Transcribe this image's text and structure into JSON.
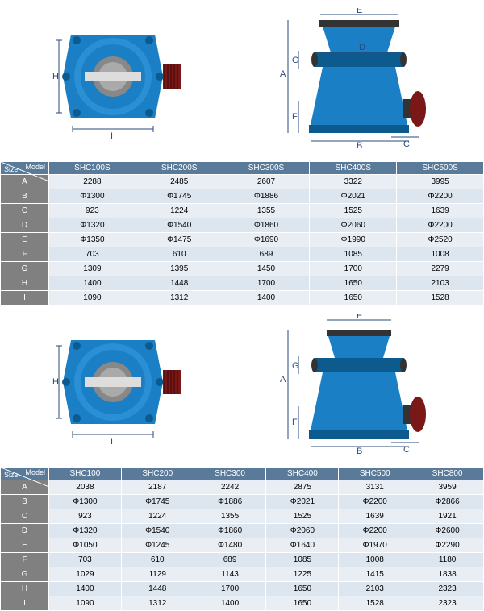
{
  "colors": {
    "crusher_blue": "#1a7fc4",
    "crusher_dark": "#0d5a8f",
    "pulley": "#7a1818",
    "dim_line": "#2a4a7a",
    "header_bg": "#5a7a9a",
    "label_bg": "#808080",
    "data_bg": "#e8eef4",
    "data_alt": "#dde6ef"
  },
  "table1": {
    "corner": {
      "model": "Model",
      "size": "Size"
    },
    "models": [
      "SHC100S",
      "SHC200S",
      "SHC300S",
      "SHC400S",
      "SHC500S"
    ],
    "rows": [
      {
        "label": "A",
        "vals": [
          "2288",
          "2485",
          "2607",
          "3322",
          "3995"
        ]
      },
      {
        "label": "B",
        "vals": [
          "Φ1300",
          "Φ1745",
          "Φ1886",
          "Φ2021",
          "Φ2200"
        ]
      },
      {
        "label": "C",
        "vals": [
          "923",
          "1224",
          "1355",
          "1525",
          "1639"
        ]
      },
      {
        "label": "D",
        "vals": [
          "Φ1320",
          "Φ1540",
          "Φ1860",
          "Φ2060",
          "Φ2200"
        ]
      },
      {
        "label": "E",
        "vals": [
          "Φ1350",
          "Φ1475",
          "Φ1690",
          "Φ1990",
          "Φ2520"
        ]
      },
      {
        "label": "F",
        "vals": [
          "703",
          "610",
          "689",
          "1085",
          "1008"
        ]
      },
      {
        "label": "G",
        "vals": [
          "1309",
          "1395",
          "1450",
          "1700",
          "2279"
        ]
      },
      {
        "label": "H",
        "vals": [
          "1400",
          "1448",
          "1700",
          "1650",
          "2103"
        ]
      },
      {
        "label": "I",
        "vals": [
          "1090",
          "1312",
          "1400",
          "1650",
          "1528"
        ]
      }
    ]
  },
  "table2": {
    "corner": {
      "model": "Model",
      "size": "Size"
    },
    "models": [
      "SHC100",
      "SHC200",
      "SHC300",
      "SHC400",
      "SHC500",
      "SHC800"
    ],
    "rows": [
      {
        "label": "A",
        "vals": [
          "2038",
          "2187",
          "2242",
          "2875",
          "3131",
          "3959"
        ]
      },
      {
        "label": "B",
        "vals": [
          "Φ1300",
          "Φ1745",
          "Φ1886",
          "Φ2021",
          "Φ2200",
          "Φ2866"
        ]
      },
      {
        "label": "C",
        "vals": [
          "923",
          "1224",
          "1355",
          "1525",
          "1639",
          "1921"
        ]
      },
      {
        "label": "D",
        "vals": [
          "Φ1320",
          "Φ1540",
          "Φ1860",
          "Φ2060",
          "Φ2200",
          "Φ2600"
        ]
      },
      {
        "label": "E",
        "vals": [
          "Φ1050",
          "Φ1245",
          "Φ1480",
          "Φ1640",
          "Φ1970",
          "Φ2290"
        ]
      },
      {
        "label": "F",
        "vals": [
          "703",
          "610",
          "689",
          "1085",
          "1008",
          "1180"
        ]
      },
      {
        "label": "G",
        "vals": [
          "1029",
          "1129",
          "1143",
          "1225",
          "1415",
          "1838"
        ]
      },
      {
        "label": "H",
        "vals": [
          "1400",
          "1448",
          "1700",
          "1650",
          "2103",
          "2323"
        ]
      },
      {
        "label": "I",
        "vals": [
          "1090",
          "1312",
          "1400",
          "1650",
          "1528",
          "2323"
        ]
      }
    ]
  },
  "dims": {
    "H": "H",
    "I": "I",
    "A": "A",
    "B": "B",
    "C": "C",
    "D": "D",
    "E": "E",
    "F": "F",
    "G": "G"
  }
}
